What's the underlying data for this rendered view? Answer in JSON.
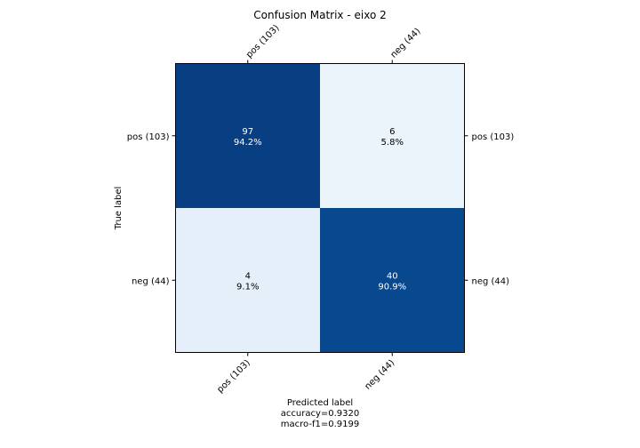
{
  "chart_data": {
    "type": "heatmap",
    "title": "Confusion Matrix - eixo 2",
    "xlabel": "Predicted label",
    "ylabel": "True label",
    "footer_lines": [
      "accuracy=0.9320",
      "macro-f1=0.9199"
    ],
    "row_labels": [
      "pos (103)",
      "neg (44)"
    ],
    "col_labels": [
      "pos (103)",
      "neg (44)"
    ],
    "counts": [
      [
        97,
        6
      ],
      [
        4,
        40
      ]
    ],
    "percent_labels": [
      [
        "94.2%",
        "5.8%"
      ],
      [
        "9.1%",
        "90.9%"
      ]
    ],
    "colormap": "Blues",
    "colors": {
      "dark_text": "#000000",
      "light_text": "#ffffff"
    }
  }
}
